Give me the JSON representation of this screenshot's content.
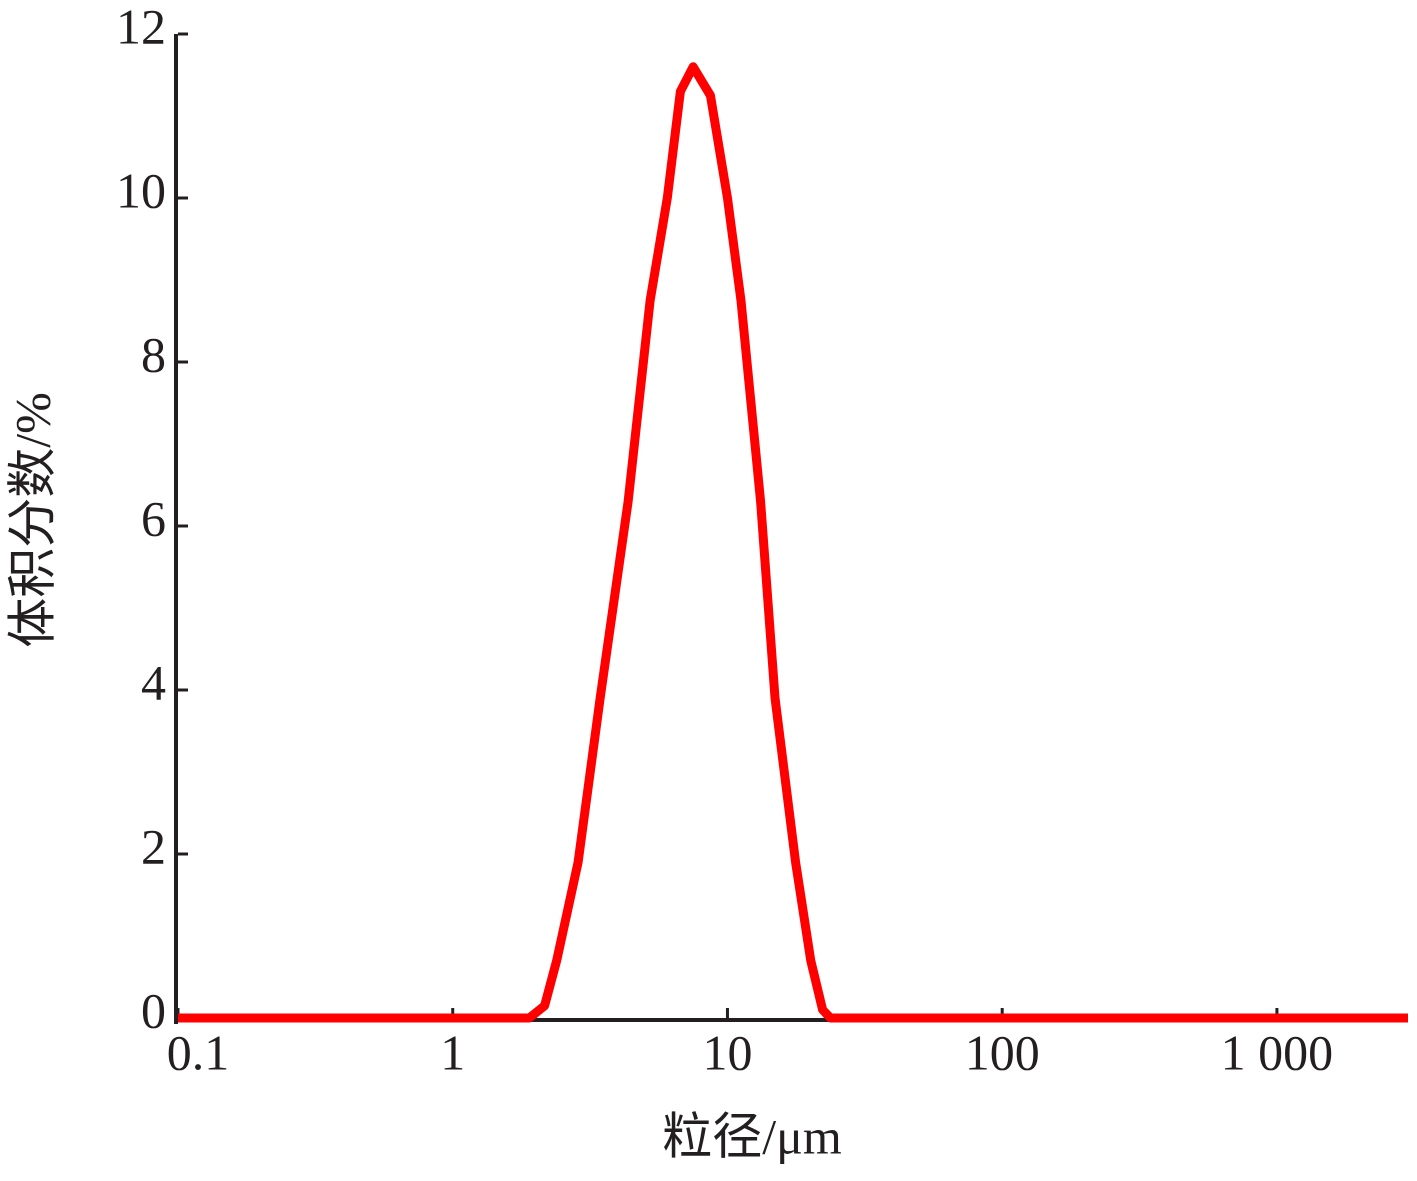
{
  "chart_data": {
    "type": "line",
    "x_label": "粒径/μm",
    "y_label": "体积分数/%",
    "xscale": "log",
    "x": [
      0.1,
      1,
      1.9,
      2.16,
      2.39,
      2.86,
      3.44,
      4.35,
      5.23,
      6.04,
      6.74,
      7.5,
      8.67,
      10,
      11.2,
      13.2,
      14.9,
      17.7,
      20.1,
      22.2,
      23.7,
      3000
    ],
    "series": [
      {
        "color": "#ff0000",
        "values": [
          0,
          0,
          0,
          0.15,
          0.7,
          1.9,
          3.9,
          6.3,
          8.75,
          10,
          11.3,
          11.6,
          11.25,
          10,
          8.75,
          6.3,
          3.9,
          1.9,
          0.7,
          0.1,
          0,
          0
        ]
      }
    ],
    "xlim": [
      0.1,
      3000
    ],
    "xticks": [
      0.1,
      1,
      10,
      100,
      {
        "value": 1000,
        "label": "1 000"
      }
    ],
    "ylim": [
      0,
      12
    ],
    "yticks": [
      0,
      2,
      4,
      6,
      8,
      10,
      12
    ]
  }
}
